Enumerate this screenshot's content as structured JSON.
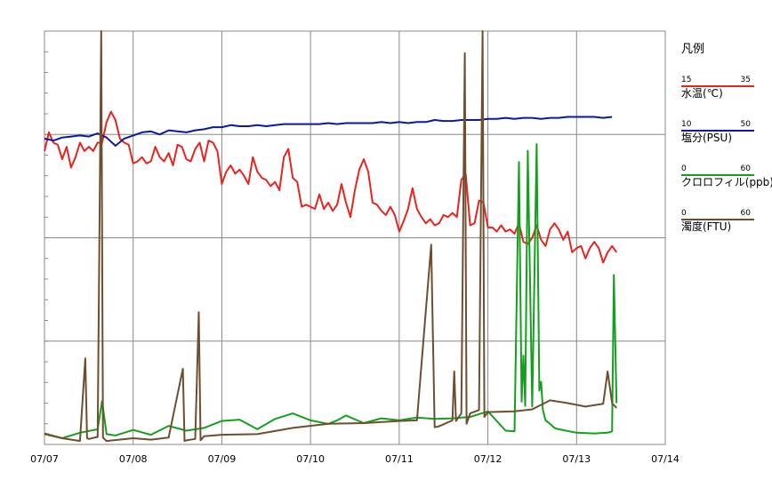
{
  "chart_data": {
    "type": "line",
    "x_range": [
      "07/07",
      "07/14"
    ],
    "x_ticks": [
      "07/07",
      "07/08",
      "07/09",
      "07/10",
      "07/11",
      "07/12",
      "07/13",
      "07/14"
    ],
    "grid": true,
    "legend_placement": "right",
    "legend": {
      "title": "凡例"
    },
    "series": [
      {
        "name": "水温(℃)",
        "min": "15",
        "max": "35",
        "ymin": 15,
        "ymax": 35,
        "color": "#e8241e",
        "x": [
          0.0,
          0.05,
          0.1,
          0.15,
          0.2,
          0.25,
          0.3,
          0.35,
          0.4,
          0.45,
          0.5,
          0.55,
          0.6,
          0.65,
          0.7,
          0.75,
          0.8,
          0.85,
          0.9,
          0.95,
          1.0,
          1.05,
          1.1,
          1.15,
          1.2,
          1.25,
          1.3,
          1.35,
          1.4,
          1.45,
          1.5,
          1.55,
          1.6,
          1.65,
          1.7,
          1.75,
          1.8,
          1.85,
          1.9,
          1.95,
          2.0,
          2.05,
          2.1,
          2.15,
          2.2,
          2.25,
          2.3,
          2.35,
          2.4,
          2.45,
          2.5,
          2.55,
          2.6,
          2.65,
          2.7,
          2.75,
          2.8,
          2.85,
          2.9,
          2.95,
          3.0,
          3.05,
          3.1,
          3.15,
          3.2,
          3.25,
          3.3,
          3.35,
          3.4,
          3.45,
          3.5,
          3.55,
          3.6,
          3.65,
          3.7,
          3.75,
          3.8,
          3.85,
          3.9,
          3.95,
          4.0,
          4.05,
          4.1,
          4.15,
          4.2,
          4.25,
          4.3,
          4.35,
          4.4,
          4.45,
          4.5,
          4.55,
          4.6,
          4.65,
          4.7,
          4.75,
          4.8,
          4.85,
          4.9,
          4.95,
          5.0,
          5.05,
          5.1,
          5.15,
          5.2,
          5.25,
          5.3,
          5.35,
          5.4,
          5.45,
          5.5,
          5.55,
          5.6,
          5.65,
          5.7,
          5.75,
          5.8,
          5.85,
          5.9,
          5.95,
          6.0,
          6.05,
          6.1,
          6.15,
          6.2,
          6.25,
          6.3,
          6.35,
          6.4,
          6.45
        ],
        "values": [
          29.2,
          30.1,
          29.6,
          29.5,
          28.8,
          29.4,
          28.4,
          28.9,
          29.6,
          29.2,
          29.4,
          29.2,
          29.6,
          29.6,
          30.6,
          31.1,
          30.7,
          29.8,
          29.6,
          29.5,
          28.6,
          28.7,
          28.9,
          28.6,
          28.7,
          29.4,
          28.9,
          28.7,
          29.1,
          28.5,
          29.5,
          29.4,
          28.8,
          28.7,
          29.3,
          29.6,
          28.7,
          29.7,
          29.6,
          29.2,
          27.6,
          28.2,
          28.5,
          28.1,
          28.3,
          28.0,
          27.6,
          28.9,
          28.2,
          27.9,
          27.8,
          27.5,
          27.7,
          27.3,
          28.9,
          29.3,
          27.9,
          27.7,
          26.5,
          26.6,
          26.5,
          26.4,
          27.1,
          26.4,
          26.7,
          26.3,
          26.6,
          27.6,
          26.7,
          26.0,
          27.3,
          28.3,
          28.8,
          28.2,
          26.7,
          26.6,
          26.3,
          26.1,
          26.5,
          26.1,
          25.3,
          25.8,
          26.4,
          27.4,
          26.4,
          26.0,
          25.7,
          25.9,
          25.6,
          25.7,
          26.1,
          26.0,
          26.2,
          26.0,
          27.8,
          28.1,
          25.6,
          25.7,
          26.8,
          26.7,
          25.5,
          25.5,
          25.3,
          25.6,
          25.3,
          25.4,
          25.2,
          25.7,
          24.8,
          24.7,
          25.0,
          25.6,
          24.9,
          24.6,
          25.4,
          25.7,
          25.4,
          24.9,
          25.3,
          24.3,
          24.5,
          24.6,
          24.0,
          24.5,
          24.8,
          24.5,
          23.8,
          24.3,
          24.6,
          24.3
        ]
      },
      {
        "name": "塩分(PSU)",
        "min": "10",
        "max": "50",
        "ymin": 10,
        "ymax": 50,
        "color": "#0a1aa0",
        "x": [
          0.0,
          0.1,
          0.2,
          0.3,
          0.4,
          0.5,
          0.6,
          0.7,
          0.8,
          0.9,
          1.0,
          1.1,
          1.2,
          1.3,
          1.4,
          1.5,
          1.6,
          1.7,
          1.8,
          1.9,
          2.0,
          2.1,
          2.2,
          2.3,
          2.4,
          2.5,
          2.6,
          2.7,
          2.8,
          2.9,
          3.0,
          3.1,
          3.2,
          3.3,
          3.4,
          3.5,
          3.6,
          3.7,
          3.8,
          3.9,
          4.0,
          4.1,
          4.2,
          4.3,
          4.4,
          4.5,
          4.6,
          4.7,
          4.8,
          4.9,
          5.0,
          5.1,
          5.2,
          5.3,
          5.4,
          5.5,
          5.6,
          5.7,
          5.8,
          5.9,
          6.0,
          6.1,
          6.2,
          6.3,
          6.4
        ],
        "values": [
          39.6,
          39.4,
          39.7,
          39.8,
          39.9,
          39.8,
          40.1,
          39.7,
          38.9,
          39.6,
          39.9,
          40.2,
          40.3,
          40.0,
          40.4,
          40.3,
          40.2,
          40.4,
          40.5,
          40.7,
          40.7,
          40.9,
          40.8,
          40.8,
          40.9,
          40.8,
          40.9,
          41.0,
          41.0,
          41.0,
          41.0,
          41.0,
          41.1,
          41.0,
          41.1,
          41.1,
          41.1,
          41.1,
          41.2,
          41.1,
          41.2,
          41.1,
          41.2,
          41.2,
          41.4,
          41.3,
          41.3,
          41.4,
          41.4,
          41.4,
          41.5,
          41.5,
          41.6,
          41.5,
          41.6,
          41.6,
          41.5,
          41.6,
          41.6,
          41.7,
          41.7,
          41.7,
          41.7,
          41.6,
          41.7
        ]
      },
      {
        "name": "クロロフィル(ppb)",
        "min": "0",
        "max": "60",
        "ymin": 0,
        "ymax": 60,
        "color": "#14a01e",
        "x": [
          0.0,
          0.2,
          0.4,
          0.6,
          0.65,
          0.7,
          0.8,
          1.0,
          1.2,
          1.4,
          1.6,
          1.8,
          2.0,
          2.2,
          2.4,
          2.6,
          2.8,
          3.0,
          3.2,
          3.3,
          3.4,
          3.6,
          3.8,
          4.0,
          4.2,
          4.4,
          4.6,
          4.8,
          5.0,
          5.2,
          5.3,
          5.35,
          5.38,
          5.4,
          5.42,
          5.45,
          5.5,
          5.55,
          5.58,
          5.6,
          5.62,
          5.65,
          5.7,
          5.75,
          5.8,
          6.0,
          6.2,
          6.35,
          6.4,
          6.42,
          6.45
        ],
        "values": [
          1.5,
          0.9,
          1.7,
          2.2,
          6.3,
          1.5,
          1.3,
          2.1,
          1.4,
          2.7,
          2.0,
          2.4,
          3.4,
          3.6,
          2.2,
          3.7,
          4.5,
          3.5,
          3.0,
          3.5,
          4.2,
          3.1,
          3.8,
          3.5,
          3.9,
          3.7,
          3.8,
          4.0,
          4.8,
          2.0,
          1.9,
          41.0,
          6.2,
          12.9,
          5.6,
          42.6,
          5.5,
          43.6,
          7.8,
          9.1,
          5.0,
          3.5,
          3.0,
          2.4,
          2.2,
          1.7,
          1.6,
          1.7,
          1.9,
          24.6,
          6.0
        ]
      },
      {
        "name": "濁度(FTU)",
        "min": "0",
        "max": "60",
        "ymin": 0,
        "ymax": 60,
        "color": "#6e4e2e",
        "x": [
          0.0,
          0.2,
          0.4,
          0.46,
          0.48,
          0.5,
          0.6,
          0.64,
          0.66,
          0.7,
          1.0,
          1.2,
          1.4,
          1.56,
          1.58,
          1.6,
          1.7,
          1.74,
          1.76,
          1.8,
          2.0,
          2.4,
          2.8,
          3.2,
          3.6,
          4.0,
          4.2,
          4.36,
          4.4,
          4.44,
          4.6,
          4.62,
          4.64,
          4.7,
          4.74,
          4.76,
          4.8,
          4.9,
          4.94,
          4.96,
          5.0,
          5.3,
          5.5,
          5.7,
          5.9,
          6.1,
          6.3,
          6.35,
          6.4,
          6.45
        ],
        "values": [
          1.6,
          0.9,
          0.5,
          12.5,
          0.9,
          0.8,
          1.1,
          60.0,
          1.0,
          0.5,
          0.9,
          0.7,
          1.0,
          11.0,
          0.5,
          0.6,
          0.8,
          19.2,
          0.6,
          1.2,
          1.4,
          1.5,
          2.4,
          3.0,
          3.1,
          3.4,
          3.5,
          29.0,
          2.5,
          2.6,
          3.5,
          10.6,
          3.4,
          4.5,
          56.8,
          3.0,
          4.5,
          5.0,
          60.0,
          4.0,
          4.7,
          4.8,
          5.1,
          6.4,
          6.0,
          5.5,
          5.9,
          10.6,
          6.0,
          5.3
        ]
      }
    ]
  }
}
